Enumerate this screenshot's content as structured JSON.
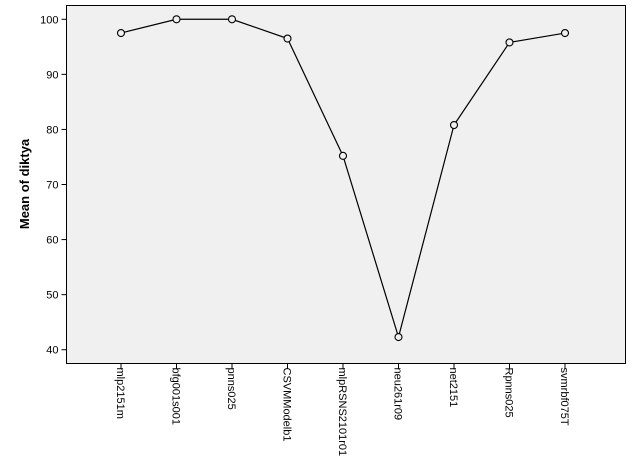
{
  "chart_data": {
    "type": "line",
    "title": "",
    "xlabel": "",
    "ylabel": "Mean of diktya",
    "categories": [
      "mlp2151m",
      "bfg001s001",
      "pnns025",
      "CSVMModelb1",
      "mlpRSNS2101r01",
      "neu261r09",
      "net2151",
      "Rpnns025",
      "svmrbf075T"
    ],
    "series": [
      {
        "values": [
          97.5,
          100,
          100,
          96.5,
          75.2,
          42.3,
          80.8,
          95.8,
          97.5
        ]
      }
    ],
    "ylim": [
      37.5,
      102.5
    ],
    "yticks": [
      40,
      50,
      60,
      70,
      80,
      90,
      100
    ],
    "grid": false,
    "legend": "none",
    "colors": {
      "plot_background": "#f0f0f0",
      "line": "#000000",
      "marker_fill": "#f0f0f0"
    },
    "marker": "circle"
  }
}
